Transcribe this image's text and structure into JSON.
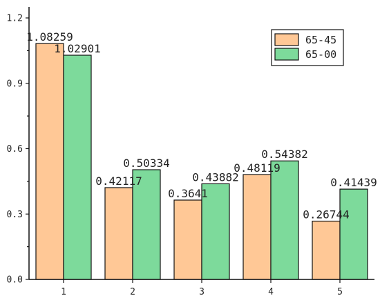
{
  "chart_data": {
    "type": "bar",
    "categories": [
      "1",
      "2",
      "3",
      "4",
      "5"
    ],
    "series": [
      {
        "name": "65-45",
        "color": "#FFC896",
        "values": [
          1.08259,
          0.42117,
          0.3641,
          0.48119,
          0.26744
        ],
        "labels": [
          "1.08259",
          "0.42117",
          "0.3641",
          "0.48119",
          "0.26744"
        ]
      },
      {
        "name": "65-00",
        "color": "#7DDA9B",
        "values": [
          1.02901,
          0.50334,
          0.43882,
          0.54382,
          0.41439
        ],
        "labels": [
          "1.02901",
          "0.50334",
          "0.43882",
          "0.54382",
          "0.41439"
        ]
      }
    ],
    "y_ticks": [
      "0.0",
      "0.3",
      "0.6",
      "0.9",
      "1.2"
    ],
    "ylim": [
      0,
      1.2
    ],
    "title": "",
    "xlabel": "",
    "ylabel": "",
    "legend_position": "top-right",
    "grid": false
  }
}
